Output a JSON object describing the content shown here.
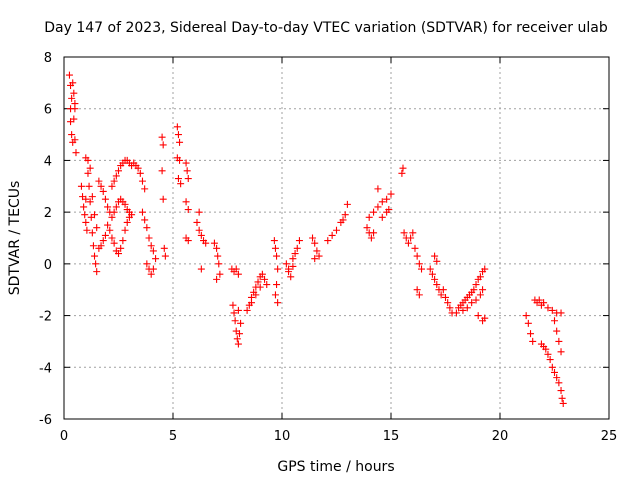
{
  "chart_data": {
    "type": "scatter",
    "title": "Day 147 of 2023, Sidereal Day-to-day VTEC variation (SDTVAR) for receiver ulab",
    "xlabel": "GPS time / hours",
    "ylabel": "SDTVAR / TECUs",
    "xlim": [
      0,
      25
    ],
    "ylim": [
      -6,
      8
    ],
    "xticks": [
      "0",
      "5",
      "10",
      "15",
      "20",
      "25"
    ],
    "yticks": [
      "-6",
      "-4",
      "-2",
      "0",
      "2",
      "4",
      "6",
      "8"
    ],
    "grid": true,
    "marker": "+",
    "color": "#ff0000",
    "series": [
      {
        "name": "SDTVAR",
        "points": [
          [
            0.25,
            7.3
          ],
          [
            0.3,
            6.9
          ],
          [
            0.35,
            6.4
          ],
          [
            0.3,
            6.0
          ],
          [
            0.3,
            5.5
          ],
          [
            0.35,
            5.0
          ],
          [
            0.4,
            4.7
          ],
          [
            0.45,
            6.6
          ],
          [
            0.5,
            6.2
          ],
          [
            0.45,
            5.6
          ],
          [
            0.5,
            4.8
          ],
          [
            0.55,
            4.3
          ],
          [
            0.4,
            7.0
          ],
          [
            0.5,
            6.0
          ],
          [
            0.8,
            3.0
          ],
          [
            0.85,
            2.6
          ],
          [
            0.9,
            2.2
          ],
          [
            0.95,
            1.9
          ],
          [
            1.0,
            1.6
          ],
          [
            1.05,
            1.3
          ],
          [
            1.0,
            2.5
          ],
          [
            1.1,
            3.5
          ],
          [
            1.15,
            3.0
          ],
          [
            1.2,
            2.4
          ],
          [
            1.25,
            1.8
          ],
          [
            1.3,
            1.2
          ],
          [
            1.35,
            0.7
          ],
          [
            1.4,
            0.3
          ],
          [
            1.45,
            0.0
          ],
          [
            1.5,
            -0.3
          ],
          [
            1.0,
            4.1
          ],
          [
            1.1,
            4.0
          ],
          [
            1.2,
            3.7
          ],
          [
            1.3,
            2.6
          ],
          [
            1.4,
            1.9
          ],
          [
            1.5,
            1.4
          ],
          [
            1.6,
            3.2
          ],
          [
            1.7,
            3.0
          ],
          [
            1.8,
            2.8
          ],
          [
            1.9,
            2.5
          ],
          [
            2.0,
            2.2
          ],
          [
            2.1,
            2.0
          ],
          [
            2.2,
            1.8
          ],
          [
            2.3,
            2.0
          ],
          [
            2.4,
            2.2
          ],
          [
            2.5,
            2.4
          ],
          [
            2.6,
            2.5
          ],
          [
            2.7,
            2.4
          ],
          [
            2.8,
            2.3
          ],
          [
            2.9,
            2.1
          ],
          [
            3.0,
            2.0
          ],
          [
            3.1,
            1.9
          ],
          [
            1.6,
            0.6
          ],
          [
            1.7,
            0.7
          ],
          [
            1.8,
            0.9
          ],
          [
            1.9,
            1.1
          ],
          [
            2.0,
            1.5
          ],
          [
            2.1,
            1.3
          ],
          [
            2.2,
            1.0
          ],
          [
            2.3,
            0.8
          ],
          [
            2.4,
            0.5
          ],
          [
            2.5,
            0.4
          ],
          [
            2.6,
            0.6
          ],
          [
            2.7,
            0.9
          ],
          [
            2.8,
            1.3
          ],
          [
            2.9,
            1.6
          ],
          [
            3.0,
            1.8
          ],
          [
            2.2,
            3.0
          ],
          [
            2.3,
            3.2
          ],
          [
            2.4,
            3.4
          ],
          [
            2.5,
            3.6
          ],
          [
            2.6,
            3.8
          ],
          [
            2.7,
            3.9
          ],
          [
            2.8,
            4.0
          ],
          [
            2.9,
            4.0
          ],
          [
            3.0,
            3.9
          ],
          [
            3.1,
            3.8
          ],
          [
            3.2,
            3.9
          ],
          [
            3.3,
            3.8
          ],
          [
            3.4,
            3.7
          ],
          [
            3.5,
            3.5
          ],
          [
            3.6,
            3.2
          ],
          [
            3.7,
            2.9
          ],
          [
            3.6,
            2.0
          ],
          [
            3.7,
            1.7
          ],
          [
            3.8,
            1.4
          ],
          [
            3.9,
            1.0
          ],
          [
            4.0,
            0.7
          ],
          [
            4.1,
            0.5
          ],
          [
            3.8,
            0.0
          ],
          [
            3.9,
            -0.2
          ],
          [
            4.0,
            -0.4
          ],
          [
            4.1,
            -0.2
          ],
          [
            4.2,
            0.2
          ],
          [
            4.5,
            3.6
          ],
          [
            4.55,
            2.5
          ],
          [
            4.6,
            0.6
          ],
          [
            4.65,
            0.3
          ],
          [
            4.5,
            4.9
          ],
          [
            4.55,
            4.6
          ],
          [
            5.2,
            5.3
          ],
          [
            5.25,
            5.0
          ],
          [
            5.3,
            4.7
          ],
          [
            5.2,
            4.1
          ],
          [
            5.3,
            4.0
          ],
          [
            5.25,
            3.3
          ],
          [
            5.35,
            3.1
          ],
          [
            5.6,
            3.9
          ],
          [
            5.65,
            3.6
          ],
          [
            5.7,
            3.3
          ],
          [
            5.6,
            2.4
          ],
          [
            5.7,
            2.1
          ],
          [
            5.6,
            1.0
          ],
          [
            5.7,
            0.9
          ],
          [
            6.1,
            1.6
          ],
          [
            6.2,
            1.3
          ],
          [
            6.3,
            1.1
          ],
          [
            6.4,
            0.9
          ],
          [
            6.5,
            0.8
          ],
          [
            6.2,
            2.0
          ],
          [
            6.3,
            -0.2
          ],
          [
            6.9,
            0.8
          ],
          [
            7.0,
            0.6
          ],
          [
            7.05,
            0.3
          ],
          [
            7.1,
            0.0
          ],
          [
            7.15,
            -0.4
          ],
          [
            7.0,
            -0.6
          ],
          [
            7.7,
            -0.2
          ],
          [
            7.8,
            -0.3
          ],
          [
            7.9,
            -0.2
          ],
          [
            8.0,
            -0.4
          ],
          [
            7.75,
            -1.6
          ],
          [
            7.8,
            -1.9
          ],
          [
            7.85,
            -2.2
          ],
          [
            7.9,
            -2.6
          ],
          [
            7.95,
            -2.9
          ],
          [
            8.0,
            -3.1
          ],
          [
            8.05,
            -2.7
          ],
          [
            8.1,
            -2.3
          ],
          [
            8.0,
            -1.8
          ],
          [
            8.5,
            -1.6
          ],
          [
            8.6,
            -1.3
          ],
          [
            8.7,
            -1.1
          ],
          [
            8.8,
            -0.9
          ],
          [
            8.9,
            -0.7
          ],
          [
            9.0,
            -0.5
          ],
          [
            9.1,
            -0.4
          ],
          [
            9.2,
            -0.6
          ],
          [
            9.3,
            -0.8
          ],
          [
            8.4,
            -1.8
          ],
          [
            8.6,
            -1.5
          ],
          [
            8.8,
            -1.2
          ],
          [
            9.0,
            -0.9
          ],
          [
            9.65,
            0.9
          ],
          [
            9.7,
            0.6
          ],
          [
            9.75,
            0.3
          ],
          [
            9.8,
            -0.2
          ],
          [
            9.75,
            -0.8
          ],
          [
            9.7,
            -1.2
          ],
          [
            9.8,
            -1.5
          ],
          [
            10.2,
            0.0
          ],
          [
            10.3,
            -0.3
          ],
          [
            10.4,
            -0.5
          ],
          [
            10.5,
            0.2
          ],
          [
            10.6,
            0.4
          ],
          [
            10.7,
            0.6
          ],
          [
            10.8,
            0.9
          ],
          [
            10.3,
            -0.2
          ],
          [
            10.5,
            -0.1
          ],
          [
            11.4,
            1.0
          ],
          [
            11.5,
            0.8
          ],
          [
            11.6,
            0.5
          ],
          [
            11.7,
            0.3
          ],
          [
            11.5,
            0.2
          ],
          [
            12.1,
            0.9
          ],
          [
            12.3,
            1.1
          ],
          [
            12.5,
            1.3
          ],
          [
            12.7,
            1.6
          ],
          [
            12.9,
            1.9
          ],
          [
            13.0,
            2.3
          ],
          [
            12.8,
            1.7
          ],
          [
            13.9,
            1.4
          ],
          [
            14.0,
            1.2
          ],
          [
            14.1,
            1.0
          ],
          [
            14.2,
            1.2
          ],
          [
            14.0,
            1.8
          ],
          [
            14.2,
            2.0
          ],
          [
            14.4,
            2.2
          ],
          [
            14.6,
            2.4
          ],
          [
            14.8,
            2.5
          ],
          [
            15.0,
            2.7
          ],
          [
            14.6,
            1.8
          ],
          [
            14.8,
            2.0
          ],
          [
            14.4,
            2.9
          ],
          [
            14.9,
            2.1
          ],
          [
            15.5,
            3.5
          ],
          [
            15.55,
            3.7
          ],
          [
            15.6,
            1.2
          ],
          [
            15.7,
            1.0
          ],
          [
            15.8,
            0.8
          ],
          [
            15.9,
            1.0
          ],
          [
            16.0,
            1.2
          ],
          [
            16.1,
            0.6
          ],
          [
            16.2,
            0.3
          ],
          [
            16.3,
            0.0
          ],
          [
            16.4,
            -0.2
          ],
          [
            16.2,
            -1.0
          ],
          [
            16.3,
            -1.2
          ],
          [
            16.8,
            -0.2
          ],
          [
            16.9,
            -0.4
          ],
          [
            17.0,
            -0.6
          ],
          [
            17.1,
            -0.8
          ],
          [
            17.2,
            -1.0
          ],
          [
            17.3,
            -1.2
          ],
          [
            17.4,
            -1.0
          ],
          [
            17.5,
            -1.3
          ],
          [
            17.6,
            -1.5
          ],
          [
            17.7,
            -1.7
          ],
          [
            17.8,
            -1.9
          ],
          [
            17.0,
            0.3
          ],
          [
            17.1,
            0.1
          ],
          [
            18.0,
            -1.9
          ],
          [
            18.1,
            -1.7
          ],
          [
            18.2,
            -1.6
          ],
          [
            18.3,
            -1.5
          ],
          [
            18.4,
            -1.4
          ],
          [
            18.5,
            -1.3
          ],
          [
            18.6,
            -1.2
          ],
          [
            18.7,
            -1.1
          ],
          [
            18.8,
            -1.0
          ],
          [
            18.9,
            -0.8
          ],
          [
            19.0,
            -0.6
          ],
          [
            19.1,
            -0.5
          ],
          [
            19.2,
            -0.3
          ],
          [
            19.3,
            -0.2
          ],
          [
            18.3,
            -1.8
          ],
          [
            18.5,
            -1.7
          ],
          [
            18.7,
            -1.5
          ],
          [
            18.9,
            -1.4
          ],
          [
            19.1,
            -1.2
          ],
          [
            19.2,
            -1.0
          ],
          [
            19.0,
            -2.0
          ],
          [
            19.2,
            -2.2
          ],
          [
            19.3,
            -2.1
          ],
          [
            21.2,
            -2.0
          ],
          [
            21.3,
            -2.3
          ],
          [
            21.4,
            -2.7
          ],
          [
            21.5,
            -3.0
          ],
          [
            21.6,
            -1.4
          ],
          [
            21.7,
            -1.5
          ],
          [
            21.8,
            -1.4
          ],
          [
            21.9,
            -1.6
          ],
          [
            22.0,
            -1.5
          ],
          [
            22.2,
            -1.7
          ],
          [
            22.4,
            -1.8
          ],
          [
            22.6,
            -1.9
          ],
          [
            22.8,
            -1.9
          ],
          [
            21.9,
            -3.1
          ],
          [
            22.0,
            -3.2
          ],
          [
            22.1,
            -3.3
          ],
          [
            22.2,
            -3.5
          ],
          [
            22.3,
            -3.7
          ],
          [
            22.4,
            -4.0
          ],
          [
            22.5,
            -4.2
          ],
          [
            22.6,
            -4.4
          ],
          [
            22.7,
            -4.6
          ],
          [
            22.8,
            -4.9
          ],
          [
            22.85,
            -5.2
          ],
          [
            22.9,
            -5.4
          ],
          [
            22.8,
            -3.4
          ],
          [
            22.7,
            -3.0
          ],
          [
            22.6,
            -2.6
          ],
          [
            22.5,
            -2.2
          ]
        ]
      }
    ]
  }
}
